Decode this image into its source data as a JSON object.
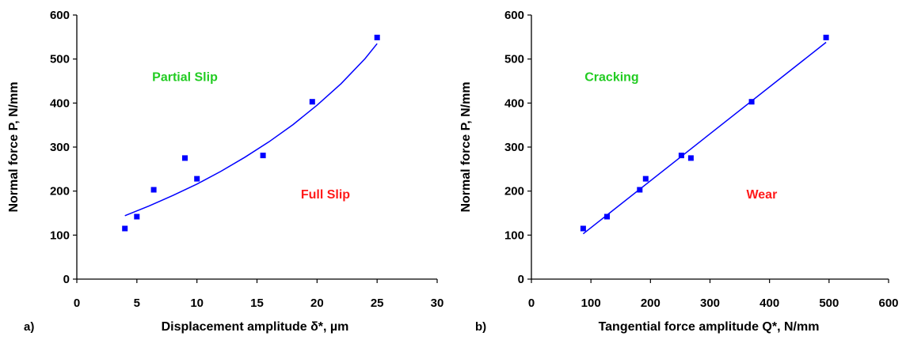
{
  "chart_data": [
    {
      "type": "scatter",
      "panel_label": "a)",
      "xlabel": "Displacement amplitude δ*, µm",
      "ylabel": "Normal force P, N/mm",
      "xlim": [
        0,
        30
      ],
      "ylim": [
        0,
        600
      ],
      "x_ticks": [
        0,
        5,
        10,
        15,
        20,
        25,
        30
      ],
      "y_ticks": [
        0,
        100,
        200,
        300,
        400,
        500,
        600
      ],
      "grid": false,
      "series": [
        {
          "marker_color": "#0000ff",
          "points": [
            {
              "x": 4.0,
              "y": 115
            },
            {
              "x": 5.0,
              "y": 142
            },
            {
              "x": 6.4,
              "y": 203
            },
            {
              "x": 9.0,
              "y": 275
            },
            {
              "x": 10.0,
              "y": 228
            },
            {
              "x": 15.5,
              "y": 281
            },
            {
              "x": 19.6,
              "y": 403
            },
            {
              "x": 25.0,
              "y": 549
            }
          ]
        }
      ],
      "trendline": {
        "color": "#0000ff",
        "points": [
          {
            "x": 4,
            "y": 144
          },
          {
            "x": 6,
            "y": 166
          },
          {
            "x": 8,
            "y": 190
          },
          {
            "x": 10,
            "y": 216
          },
          {
            "x": 12,
            "y": 245
          },
          {
            "x": 14,
            "y": 277
          },
          {
            "x": 16,
            "y": 312
          },
          {
            "x": 18,
            "y": 351
          },
          {
            "x": 20,
            "y": 395
          },
          {
            "x": 22,
            "y": 444
          },
          {
            "x": 24,
            "y": 501
          },
          {
            "x": 25,
            "y": 535
          }
        ]
      },
      "annotations": [
        {
          "text": "Partial Slip",
          "x": 9,
          "y": 450,
          "color": "#22cc22"
        },
        {
          "text": "Full Slip",
          "x": 20.7,
          "y": 183,
          "color": "#ff1a1a"
        }
      ]
    },
    {
      "type": "scatter",
      "panel_label": "b)",
      "xlabel": "Tangential force amplitude Q*, N/mm",
      "ylabel": "Normal force P, N/mm",
      "xlim": [
        0,
        600
      ],
      "ylim": [
        0,
        600
      ],
      "x_ticks": [
        0,
        100,
        200,
        300,
        400,
        500,
        600
      ],
      "y_ticks": [
        0,
        100,
        200,
        300,
        400,
        500,
        600
      ],
      "grid": false,
      "series": [
        {
          "marker_color": "#0000ff",
          "points": [
            {
              "x": 87,
              "y": 115
            },
            {
              "x": 127,
              "y": 142
            },
            {
              "x": 182,
              "y": 203
            },
            {
              "x": 192,
              "y": 228
            },
            {
              "x": 252,
              "y": 281
            },
            {
              "x": 268,
              "y": 275
            },
            {
              "x": 370,
              "y": 403
            },
            {
              "x": 495,
              "y": 549
            }
          ]
        }
      ],
      "trendline": {
        "color": "#0000ff",
        "points": [
          {
            "x": 87,
            "y": 103
          },
          {
            "x": 495,
            "y": 538
          }
        ]
      },
      "annotations": [
        {
          "text": "Cracking",
          "x": 135,
          "y": 450,
          "color": "#22cc22"
        },
        {
          "text": "Wear",
          "x": 387,
          "y": 183,
          "color": "#ff1a1a"
        }
      ]
    }
  ]
}
